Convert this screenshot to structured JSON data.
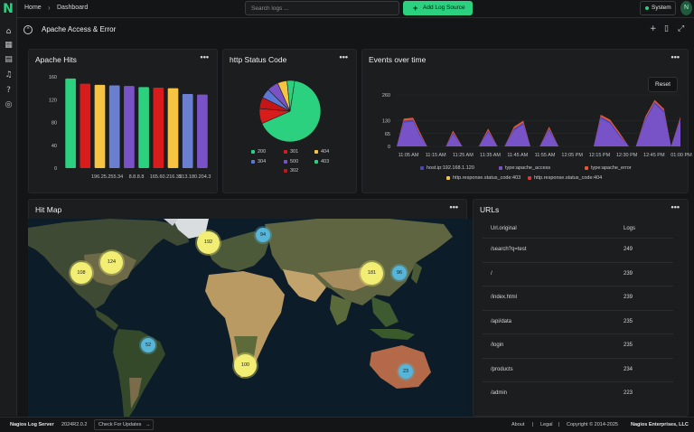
{
  "nav": {
    "logo": "N",
    "breadcrumb": [
      "Home",
      "Dashboard"
    ],
    "search_placeholder": "Search logs ...",
    "add_button": "Add Log Source",
    "system_button": "System",
    "avatar_initial": "N"
  },
  "rail_icons": [
    "home-icon",
    "dashboard-grid-icon",
    "document-icon",
    "bell-icon",
    "help-icon",
    "search-history-icon"
  ],
  "dashboard": {
    "title": "Apache Access & Error",
    "actions": [
      "add-icon",
      "delete-icon",
      "expand-icon"
    ]
  },
  "panels": {
    "apache_hits": {
      "title": "Apache Hits",
      "menu": "•••"
    },
    "status_code": {
      "title": "http Status Code",
      "menu": "•••"
    },
    "events": {
      "title": "Events over time",
      "menu": "•••",
      "reset": "Reset"
    },
    "hit_map": {
      "title": "Hit Map",
      "menu": "•••"
    },
    "urls": {
      "title": "URLs",
      "menu": "•••"
    }
  },
  "chart_data": [
    {
      "type": "bar",
      "title": "Apache Hits",
      "ylim": [
        0,
        160
      ],
      "yticks": [
        0,
        40,
        80,
        120,
        160
      ],
      "categories": [
        "",
        "",
        "196.25.255.34",
        "",
        "8.8.8.8",
        "",
        "165.60.216.35",
        "",
        "213.180.204.3",
        ""
      ],
      "values": [
        157,
        148,
        146,
        145,
        144,
        142,
        141,
        140,
        130,
        129
      ],
      "colors": [
        "#2bd17e",
        "#d81b1b",
        "#f6c343",
        "#6b7fd1",
        "#7a52c7",
        "#2bd17e",
        "#d81b1b",
        "#f6c343",
        "#6b7fd1",
        "#7a52c7"
      ]
    },
    {
      "type": "pie",
      "title": "http Status Code",
      "slices": [
        {
          "label": "200",
          "value": 66,
          "color": "#2bd17e"
        },
        {
          "label": "301",
          "value": 8,
          "color": "#d81b1b"
        },
        {
          "label": "302",
          "value": 6,
          "color": "#c41616"
        },
        {
          "label": "304",
          "value": 5,
          "color": "#5b78d6"
        },
        {
          "label": "500",
          "value": 6,
          "color": "#7a52c7"
        },
        {
          "label": "404",
          "value": 5,
          "color": "#f6c343"
        },
        {
          "label": "403",
          "value": 4,
          "color": "#2bd17e"
        }
      ]
    },
    {
      "type": "area",
      "title": "Events over time",
      "ylim": [
        0,
        260
      ],
      "yticks": [
        0,
        65,
        130,
        260
      ],
      "xticks": [
        "11:05 AM",
        "11:15 AM",
        "11:25 AM",
        "11:35 AM",
        "11:45 AM",
        "11:55 AM",
        "12:05 PM",
        "12:15 PM",
        "12:30 PM",
        "12:45 PM",
        "01:00 PM"
      ],
      "x": [
        "11:03",
        "11:06",
        "11:10",
        "11:13",
        "11:16",
        "11:20",
        "11:24",
        "11:27",
        "11:31",
        "11:35",
        "11:38",
        "11:42",
        "11:46",
        "11:49",
        "11:53",
        "11:57",
        "12:00",
        "12:04",
        "12:08",
        "12:12",
        "12:15",
        "12:19",
        "12:23",
        "12:27",
        "12:30",
        "12:34",
        "12:38",
        "12:42",
        "12:45",
        "12:49",
        "12:53",
        "12:57",
        "13:00",
        "13:04"
      ],
      "series": [
        {
          "name": "host.ip:192.168.1.120",
          "color": "#4a4ab8",
          "values": [
            0,
            130,
            135,
            60,
            0,
            0,
            0,
            70,
            0,
            0,
            0,
            80,
            0,
            0,
            90,
            120,
            0,
            0,
            90,
            0,
            0,
            0,
            0,
            0,
            150,
            125,
            60,
            0,
            0,
            140,
            225,
            180,
            0,
            140
          ]
        },
        {
          "name": "type:apache_access",
          "color": "#7a52c7",
          "values": [
            0,
            120,
            125,
            50,
            0,
            0,
            0,
            60,
            0,
            0,
            0,
            70,
            0,
            0,
            80,
            110,
            0,
            0,
            80,
            0,
            0,
            0,
            0,
            0,
            140,
            115,
            50,
            0,
            0,
            130,
            215,
            170,
            0,
            130
          ]
        },
        {
          "name": "type:apache_error",
          "color": "#e8552f",
          "values": [
            0,
            140,
            145,
            70,
            0,
            0,
            0,
            80,
            0,
            0,
            0,
            90,
            0,
            0,
            100,
            130,
            0,
            0,
            100,
            0,
            0,
            0,
            0,
            0,
            160,
            135,
            70,
            0,
            0,
            150,
            235,
            190,
            0,
            150
          ]
        },
        {
          "name": "http.response.status_code:403",
          "color": "#f6c343",
          "values": [
            0,
            10,
            10,
            5,
            0,
            0,
            0,
            5,
            0,
            0,
            0,
            5,
            0,
            0,
            5,
            10,
            0,
            0,
            5,
            0,
            0,
            0,
            0,
            0,
            10,
            10,
            5,
            0,
            0,
            10,
            10,
            10,
            0,
            10
          ]
        },
        {
          "name": "http.response.status_code:404",
          "color": "#d83a3a",
          "values": [
            0,
            12,
            12,
            6,
            0,
            0,
            0,
            6,
            0,
            0,
            0,
            6,
            0,
            0,
            6,
            12,
            0,
            0,
            6,
            0,
            0,
            0,
            0,
            0,
            12,
            12,
            6,
            0,
            0,
            12,
            12,
            12,
            0,
            12
          ]
        }
      ]
    }
  ],
  "map": {
    "clusters": [
      {
        "count": "192",
        "kind": "yellow"
      },
      {
        "count": "94",
        "kind": "blue"
      },
      {
        "count": "124",
        "kind": "yellow"
      },
      {
        "count": "108",
        "kind": "yellow"
      },
      {
        "count": "181",
        "kind": "yellow"
      },
      {
        "count": "96",
        "kind": "blue"
      },
      {
        "count": "52",
        "kind": "blue"
      },
      {
        "count": "100",
        "kind": "yellow"
      },
      {
        "count": "23",
        "kind": "blue"
      }
    ]
  },
  "urls": {
    "col_url": "Url.original",
    "col_logs": "Logs",
    "rows": [
      {
        "url": "/search?q=test",
        "logs": "249"
      },
      {
        "url": "/",
        "logs": "239"
      },
      {
        "url": "/index.html",
        "logs": "239"
      },
      {
        "url": "/api/data",
        "logs": "235"
      },
      {
        "url": "/login",
        "logs": "235"
      },
      {
        "url": "/products",
        "logs": "234"
      },
      {
        "url": "/admin",
        "logs": "223"
      }
    ]
  },
  "footer": {
    "product": "Nagios Log Server",
    "version": "2024R2.0.2",
    "updates": "Check For Updates",
    "about": "About",
    "legal": "Legal",
    "copyright": "Copyright © 2014-2025",
    "company": "Nagios Enterprises, LLC"
  },
  "colors": {
    "accent": "#2bd17e",
    "background": "#141516",
    "panel": "#1c1d1f"
  }
}
